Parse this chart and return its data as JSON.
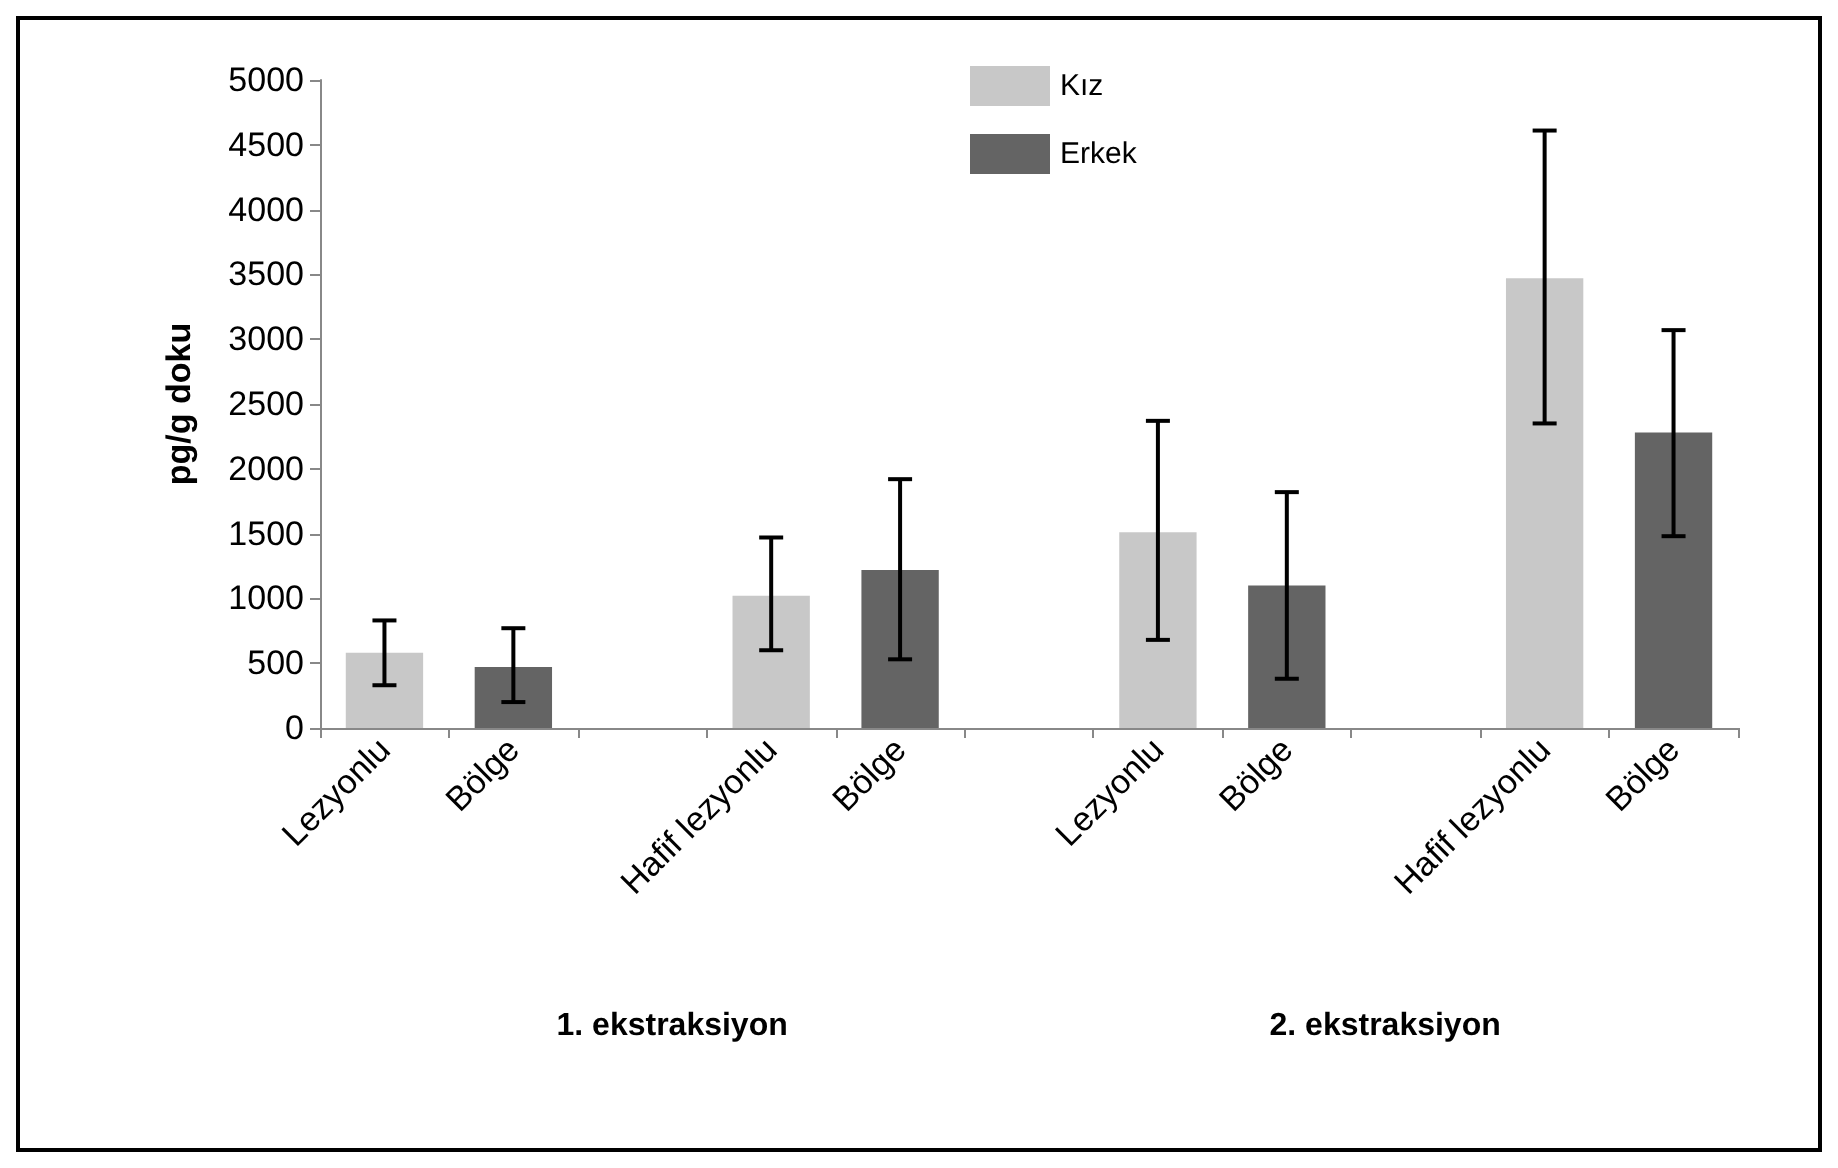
{
  "chart_data": {
    "type": "bar",
    "ylabel": "pg/g doku",
    "categories": [
      "Lezyonlu",
      "Bölge",
      null,
      "Hafif lezyonlu",
      "Bölge",
      null,
      "Lezyonlu",
      "Bölge",
      null,
      "Hafif lezyonlu",
      "Bölge"
    ],
    "series": [
      {
        "name": "Kız",
        "color": "#c8c8c8",
        "values": [
          580,
          null,
          null,
          1020,
          null,
          null,
          1510,
          null,
          null,
          3470,
          null
        ],
        "errors": [
          [
            330,
            830
          ],
          null,
          null,
          [
            600,
            1470
          ],
          null,
          null,
          [
            680,
            2370
          ],
          null,
          null,
          [
            2350,
            4610
          ],
          null
        ]
      },
      {
        "name": "Erkek",
        "color": "#646464",
        "values": [
          null,
          470,
          null,
          null,
          1220,
          null,
          null,
          1100,
          null,
          null,
          2280
        ],
        "errors": [
          null,
          [
            200,
            770
          ],
          null,
          null,
          [
            530,
            1920
          ],
          null,
          null,
          [
            380,
            1820
          ],
          null,
          null,
          [
            1480,
            3070
          ]
        ]
      }
    ],
    "ylim": [
      0,
      5000
    ],
    "yticks": [
      0,
      500,
      1000,
      1500,
      2000,
      2500,
      3000,
      3500,
      4000,
      4500,
      5000
    ],
    "grid": false,
    "legend": "top",
    "annotations": [
      "1. ekstraksiyon",
      "2. ekstraksiyon"
    ]
  }
}
